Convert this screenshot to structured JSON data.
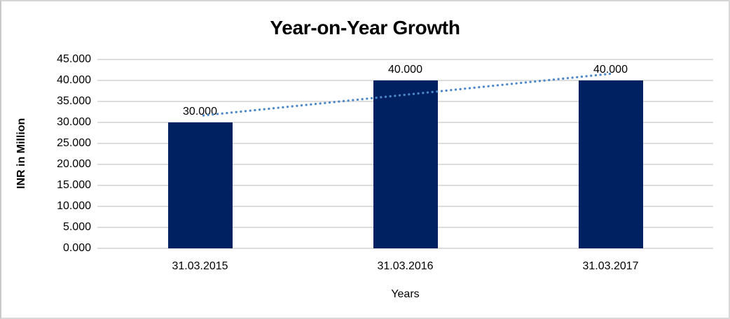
{
  "chart": {
    "title": "Year-on-Year Growth",
    "y_axis": {
      "title": "INR in Million",
      "tick_labels": [
        "45.000",
        "40.000",
        "35.000",
        "30.000",
        "25.000",
        "20.000",
        "15.000",
        "10.000",
        "5.000",
        "0.000"
      ]
    },
    "x_axis": {
      "title": "Years",
      "tick_labels": [
        "31.03.2015",
        "31.03.2016",
        "31.03.2017"
      ]
    },
    "data_labels": [
      "30.000",
      "40.000",
      "40.000"
    ],
    "colors": {
      "bar": "#002161",
      "trendline": "#4c87c8",
      "gridline": "#dddddd",
      "text": "#000000",
      "frame_border": "#d6d6d6",
      "background": "#ffffff"
    }
  },
  "chart_data": {
    "type": "bar",
    "title": "Year-on-Year Growth",
    "xlabel": "Years",
    "ylabel": "INR in Million",
    "categories": [
      "31.03.2015",
      "31.03.2016",
      "31.03.2017"
    ],
    "values": [
      30,
      40,
      40
    ],
    "value_labels": [
      "30.000",
      "40.000",
      "40.000"
    ],
    "ylim": [
      0,
      45
    ],
    "ytick_step": 5,
    "ytick_labels": [
      "45.000",
      "40.000",
      "35.000",
      "30.000",
      "25.000",
      "20.000",
      "15.000",
      "10.000",
      "5.000",
      "0.000"
    ],
    "grid": "horizontal-on",
    "legend": "none",
    "bar_color": "#002161",
    "trendline": {
      "type": "linear",
      "style": "dotted",
      "color": "#4c87c8",
      "fitted_values": [
        31.667,
        36.667,
        41.667
      ]
    }
  }
}
